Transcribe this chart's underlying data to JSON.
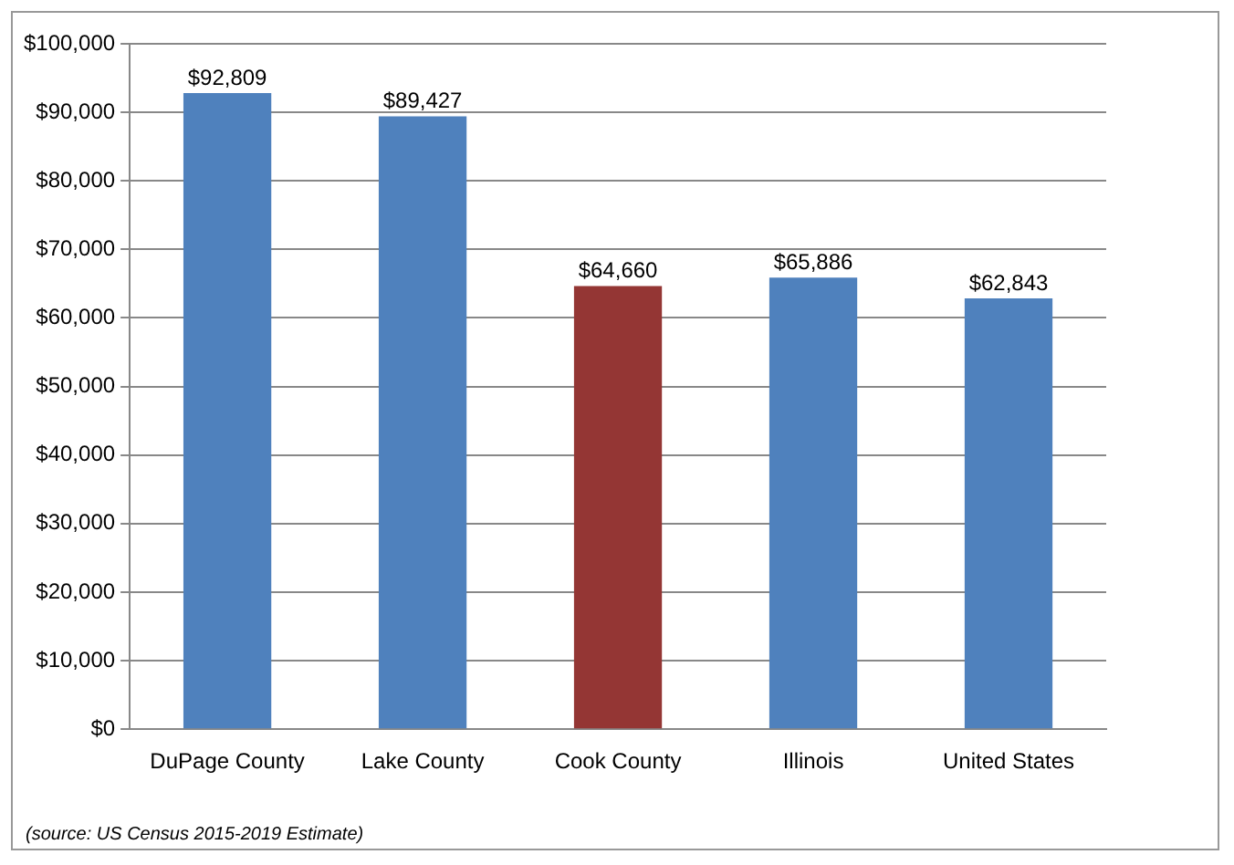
{
  "chart_data": {
    "type": "bar",
    "categories": [
      "DuPage County",
      "Lake County",
      "Cook County",
      "Illinois",
      "United States"
    ],
    "values": [
      92809,
      89427,
      64660,
      65886,
      62843
    ],
    "colors": [
      "#4f81bd",
      "#4f81bd",
      "#943634",
      "#4f81bd",
      "#4f81bd"
    ],
    "value_labels": [
      "$92,809",
      "$89,427",
      "$64,660",
      "$65,886",
      "$62,843"
    ],
    "ylim": [
      0,
      100000
    ],
    "yticks": [
      {
        "value": 0,
        "label": "$0"
      },
      {
        "value": 10000,
        "label": "$10,000"
      },
      {
        "value": 20000,
        "label": "$20,000"
      },
      {
        "value": 30000,
        "label": "$30,000"
      },
      {
        "value": 40000,
        "label": "$40,000"
      },
      {
        "value": 50000,
        "label": "$50,000"
      },
      {
        "value": 60000,
        "label": "$60,000"
      },
      {
        "value": 70000,
        "label": "$70,000"
      },
      {
        "value": 80000,
        "label": "$80,000"
      },
      {
        "value": 90000,
        "label": "$90,000"
      },
      {
        "value": 100000,
        "label": "$100,000"
      }
    ],
    "grid": "y",
    "legend": false,
    "annotations": [
      "(source: US Census 2015-2019 Estimate)"
    ]
  }
}
